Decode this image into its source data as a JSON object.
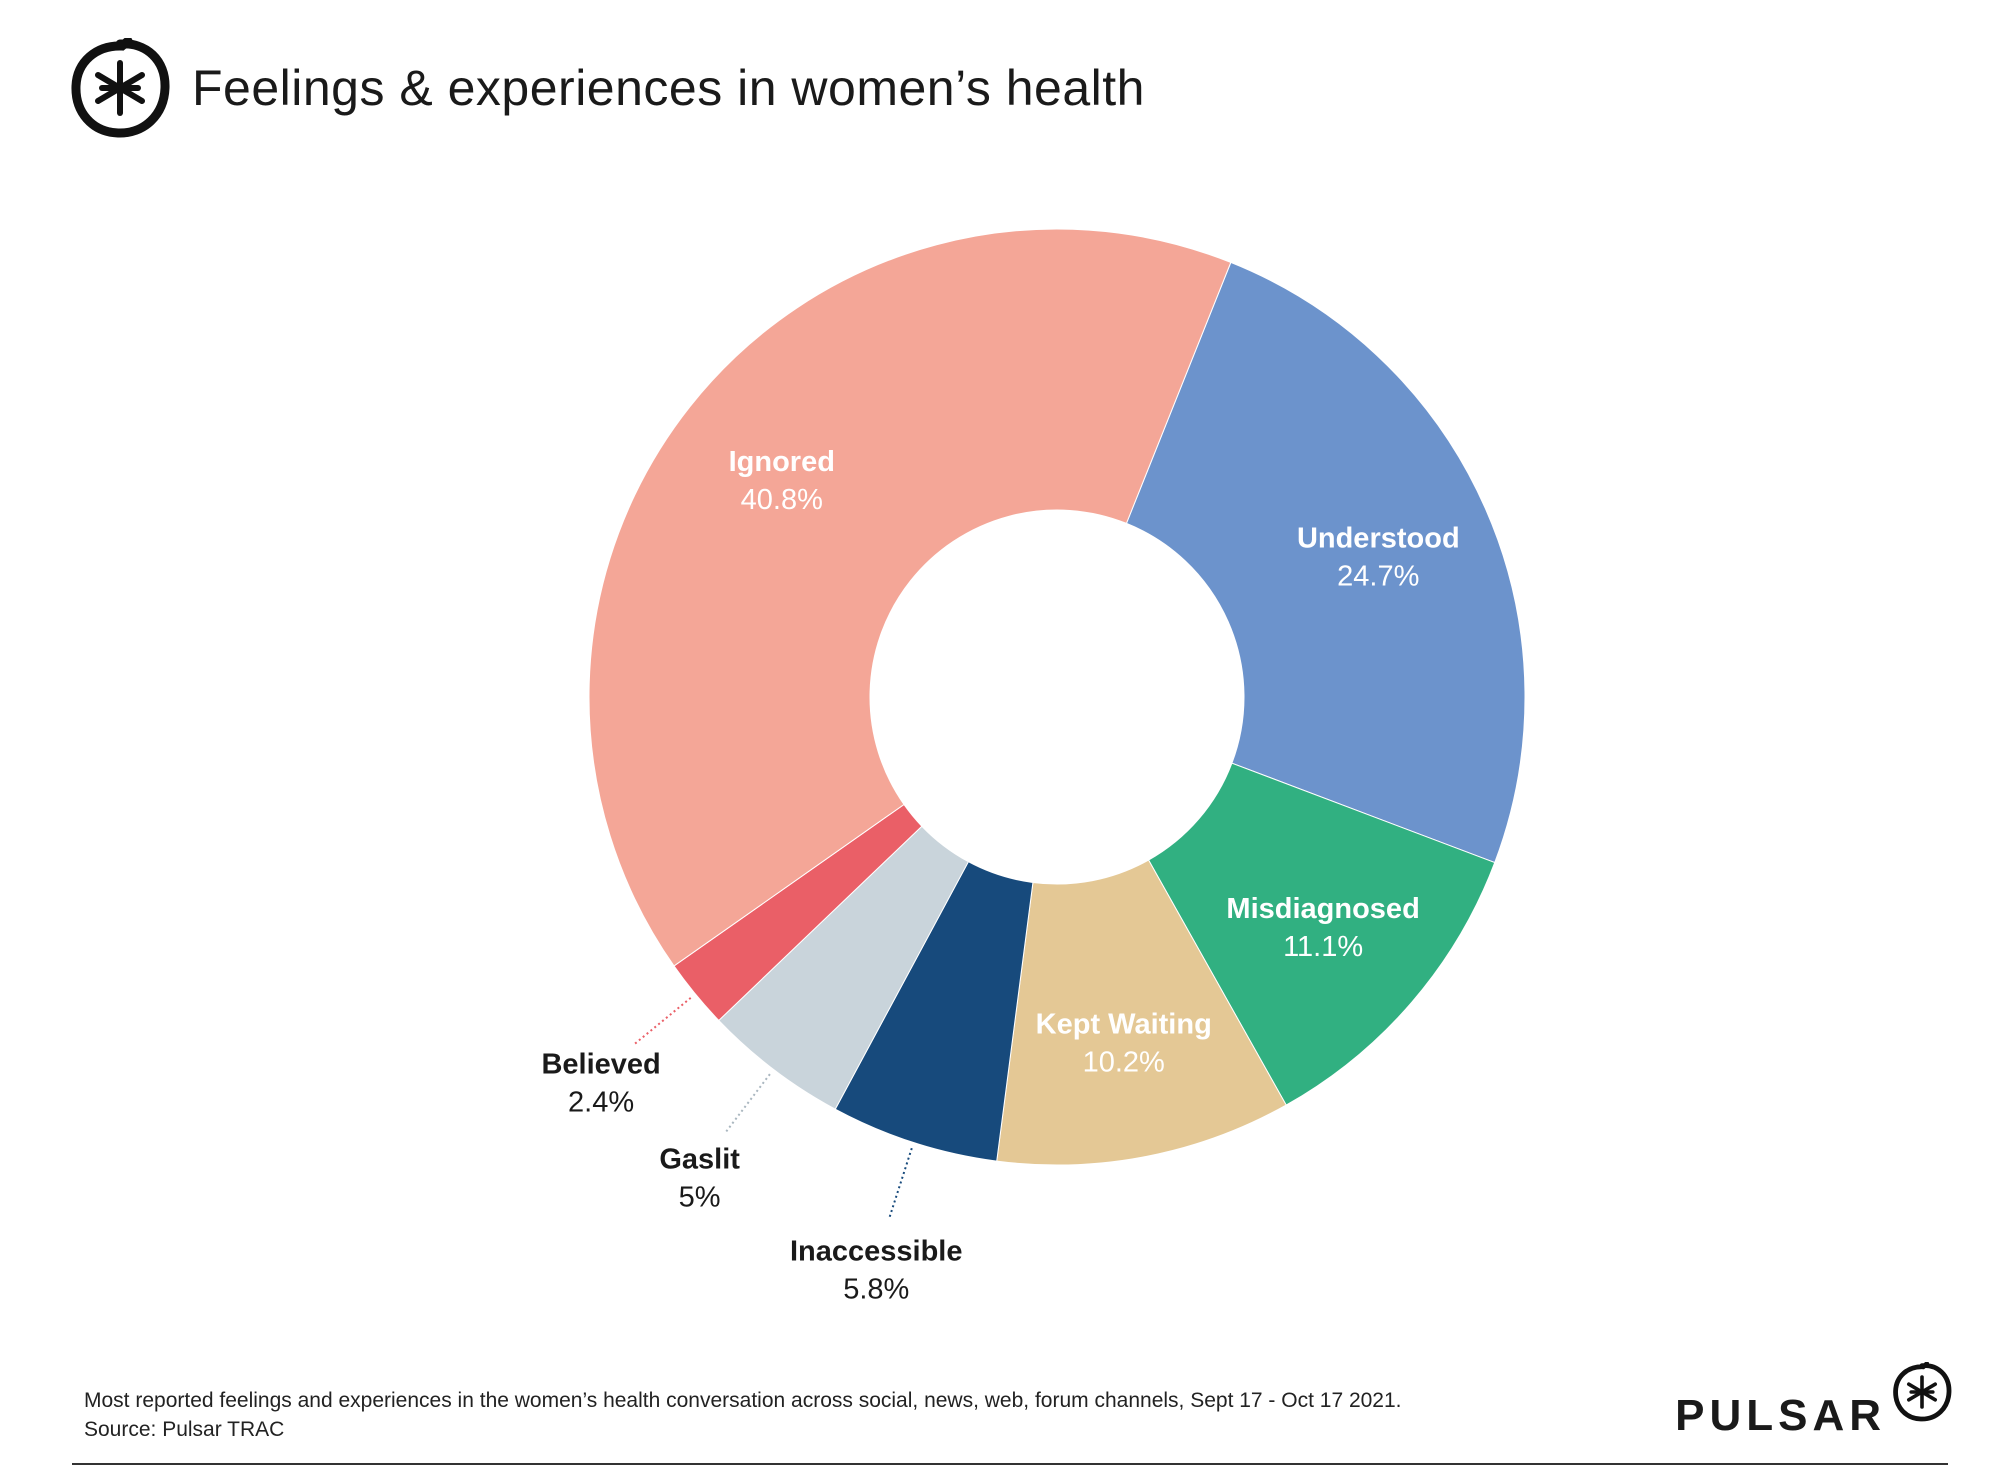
{
  "header": {
    "title": "Feelings & experiences in women’s health",
    "logo_icon": "asterisk-circle-icon"
  },
  "chart_data": {
    "type": "pie",
    "donut": true,
    "title": "Feelings & experiences in women’s health",
    "categories": [
      "Understood",
      "Misdiagnosed",
      "Kept Waiting",
      "Inaccessible",
      "Gaslit",
      "Believed",
      "Ignored"
    ],
    "values": [
      24.7,
      11.1,
      10.2,
      5.8,
      5,
      2.4,
      40.8
    ],
    "value_labels": [
      "24.7%",
      "11.1%",
      "10.2%",
      "5.8%",
      "5%",
      "2.4%",
      "40.8%"
    ],
    "colors": [
      "#6c93cc",
      "#31b081",
      "#e4c895",
      "#174a7c",
      "#c9d4db",
      "#ea5f67",
      "#f4a697"
    ],
    "label_placement": [
      "inside",
      "inside",
      "inside",
      "outside",
      "outside",
      "outside",
      "inside"
    ],
    "label_colors": [
      "#ffffff",
      "#ffffff",
      "#ffffff",
      "#1a1a1a",
      "#1a1a1a",
      "#1a1a1a",
      "#ffffff"
    ]
  },
  "footer": {
    "note": "Most reported feelings and experiences in the women’s health conversation across social, news, web, forum channels, Sept 17 - Oct 17 2021.",
    "source": "Source: Pulsar TRAC"
  },
  "brand": {
    "name": "PULSAR",
    "icon": "asterisk-circle-icon"
  }
}
